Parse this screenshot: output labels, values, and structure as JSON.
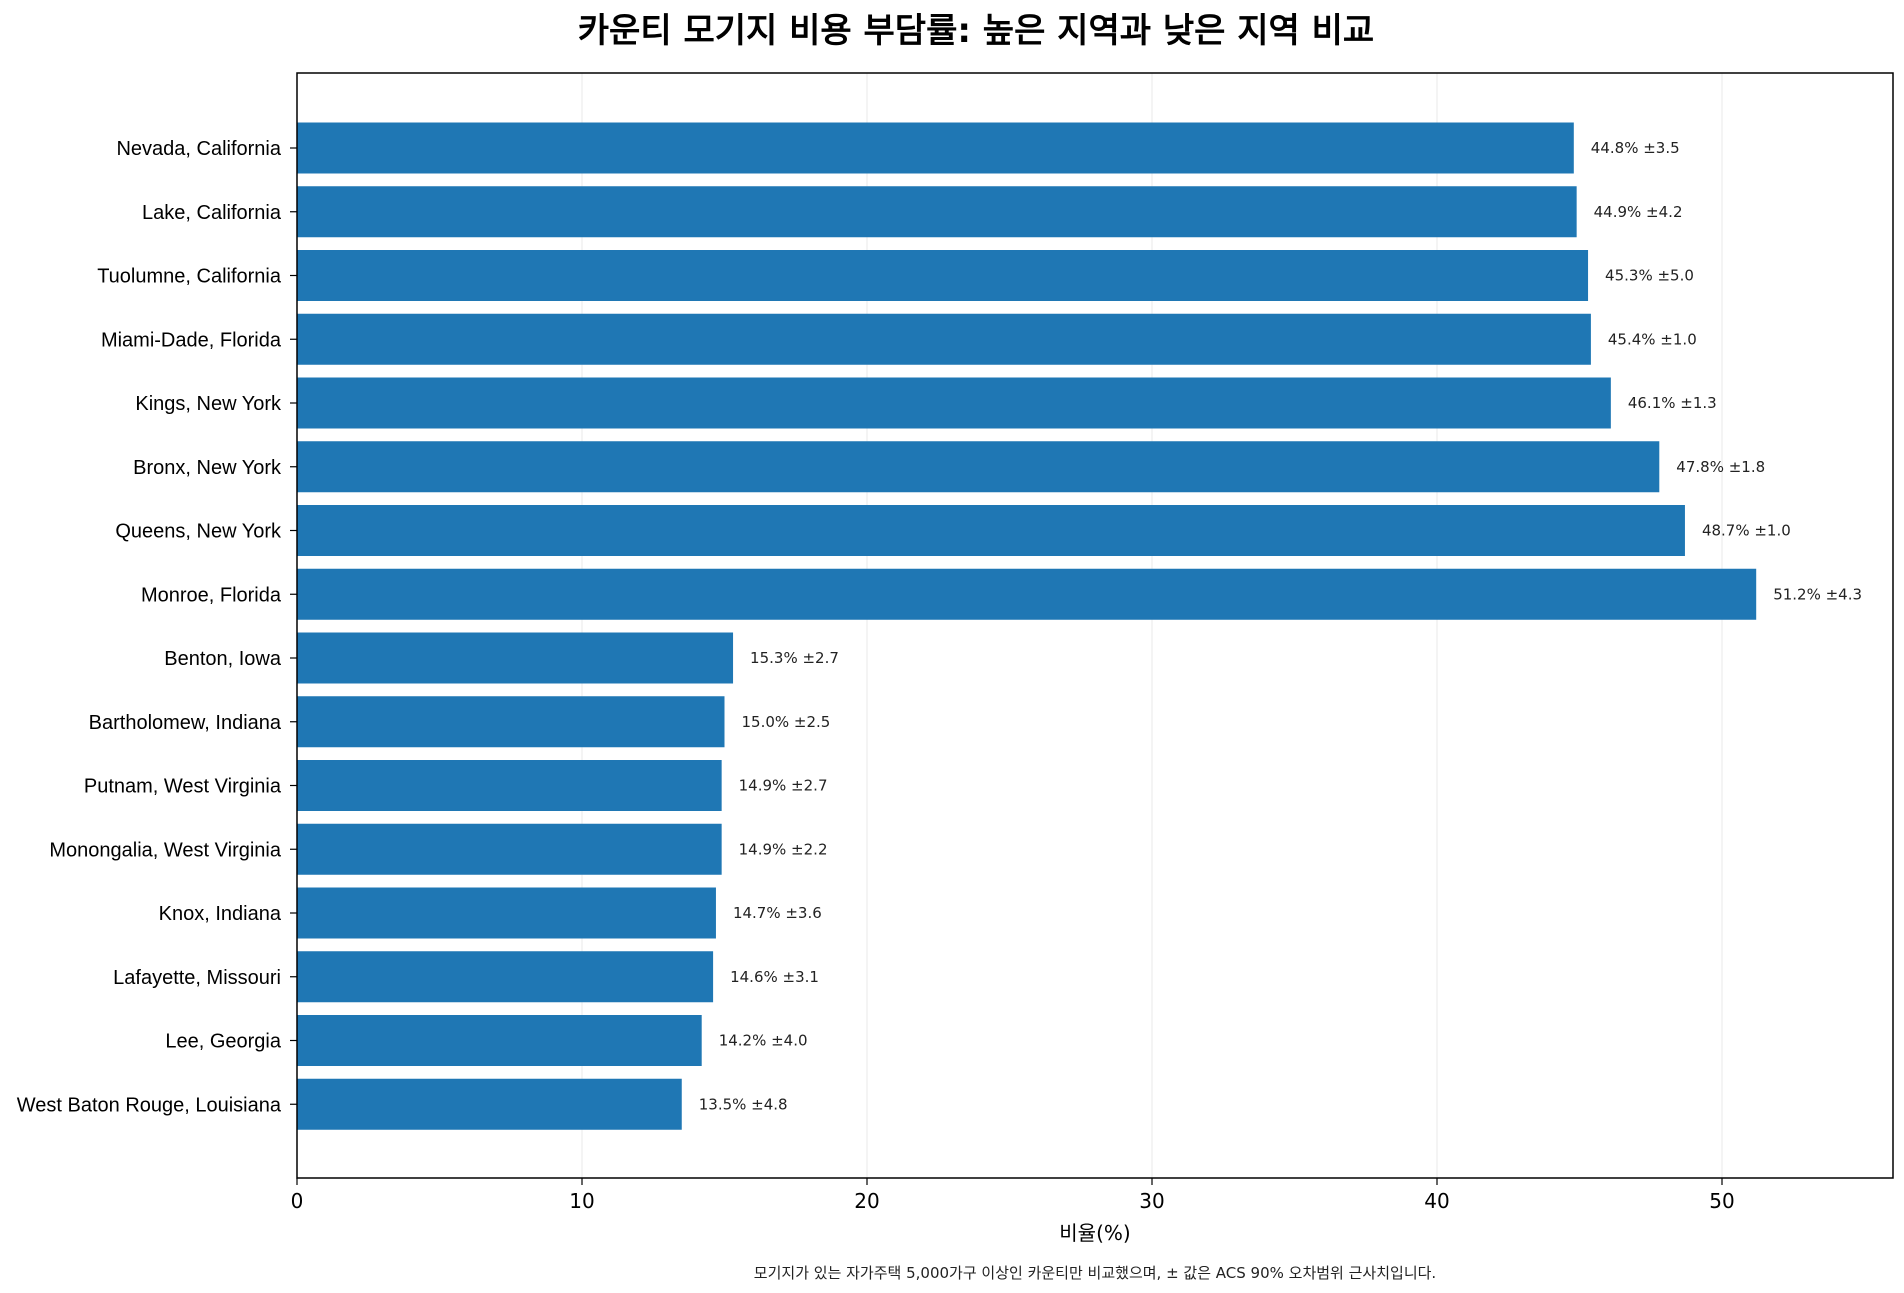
{
  "chart_data": {
    "type": "bar",
    "orientation": "horizontal",
    "title": "카운티 모기지 비용 부담률: 높은 지역과 낮은 지역 비교",
    "xlabel": "비율(%)",
    "ylabel": "",
    "xlim": [
      0,
      56
    ],
    "xticks": [
      0,
      10,
      20,
      30,
      40,
      50
    ],
    "grid": "vertical",
    "bar_color": "#1f77b4",
    "footnote": "모기지가 있는 자가주택 5,000가구 이상인 카운티만 비교했으며, ± 값은 ACS 90% 오차범위 근사치입니다.",
    "categories": [
      "Nevada, California",
      "Lake, California",
      "Tuolumne, California",
      "Miami-Dade, Florida",
      "Kings, New York",
      "Bronx, New York",
      "Queens, New York",
      "Monroe, Florida",
      "Benton, Iowa",
      "Bartholomew, Indiana",
      "Putnam, West Virginia",
      "Monongalia, West Virginia",
      "Knox, Indiana",
      "Lafayette, Missouri",
      "Lee, Georgia",
      "West Baton Rouge, Louisiana"
    ],
    "values": [
      44.8,
      44.9,
      45.3,
      45.4,
      46.1,
      47.8,
      48.7,
      51.2,
      15.3,
      15.0,
      14.9,
      14.9,
      14.7,
      14.6,
      14.2,
      13.5
    ],
    "margins": [
      3.5,
      4.2,
      5.0,
      1.0,
      1.3,
      1.8,
      1.0,
      4.3,
      2.7,
      2.5,
      2.7,
      2.2,
      3.6,
      3.1,
      4.0,
      4.8
    ],
    "data_labels": [
      "44.8% ±3.5",
      "44.9% ±4.2",
      "45.3% ±5.0",
      "45.4% ±1.0",
      "46.1% ±1.3",
      "47.8% ±1.8",
      "48.7% ±1.0",
      "51.2% ±4.3",
      "15.3% ±2.7",
      "15.0% ±2.5",
      "14.9% ±2.7",
      "14.9% ±2.2",
      "14.7% ±3.6",
      "14.6% ±3.1",
      "14.2% ±4.0",
      "13.5% ±4.8"
    ]
  }
}
